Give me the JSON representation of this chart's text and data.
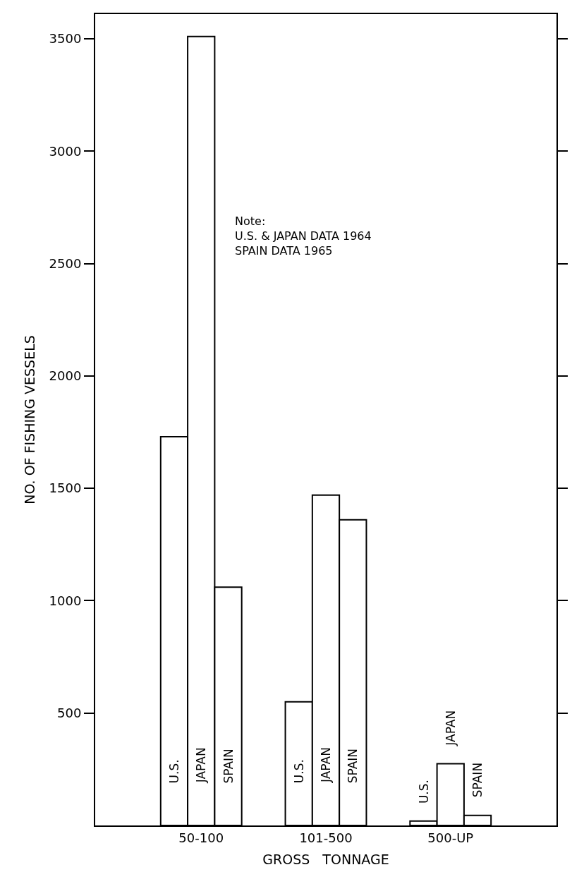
{
  "chart_data": {
    "type": "bar",
    "categories": [
      "50-100",
      "101-500",
      "500-UP"
    ],
    "series": [
      {
        "name": "U.S.",
        "color": "#ffffff",
        "values": [
          1730,
          550,
          20
        ]
      },
      {
        "name": "JAPAN",
        "color": "#ffffff",
        "values": [
          3510,
          1470,
          275
        ]
      },
      {
        "name": "SPAIN",
        "color": "#ffffff",
        "values": [
          1060,
          1360,
          45
        ]
      }
    ],
    "xlabel": "GROSS   TONNAGE",
    "ylabel": "NO. OF FISHING VESSELS",
    "ylim": [
      0,
      3610
    ],
    "yticks": [
      500,
      1000,
      1500,
      2000,
      2500,
      3000,
      3500
    ],
    "annotations": [
      "Note:\nU.S. & JAPAN DATA 1964\nSPAIN DATA 1965"
    ],
    "legend": false
  }
}
